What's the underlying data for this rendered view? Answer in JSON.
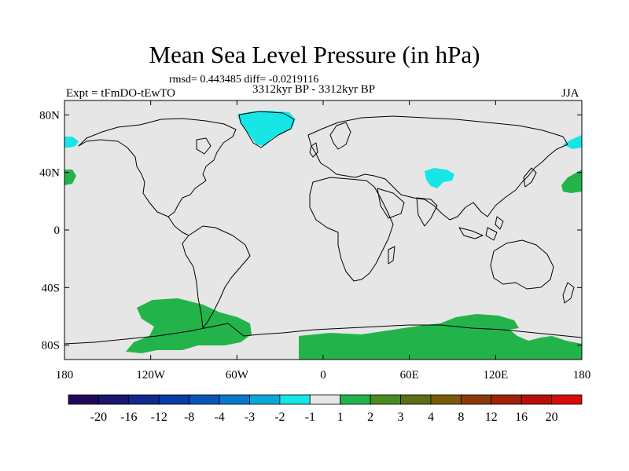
{
  "header": {
    "title": "Mean Sea Level Pressure (in hPa)",
    "rmsd": "rmsd= 0.443485 diff= -0.0219116",
    "experiment": "Expt = tFmDO-tEwTO",
    "period": "3312kyr BP - 3312kyr BP",
    "season": "JJA"
  },
  "map": {
    "lat_ticks": [
      "80N",
      "40N",
      "0",
      "40S",
      "80S"
    ],
    "lat_values": [
      80,
      40,
      0,
      -40,
      -80
    ],
    "lon_ticks": [
      "180",
      "120W",
      "60W",
      "0",
      "60E",
      "120E",
      "180"
    ],
    "lon_values": [
      -180,
      -120,
      -60,
      0,
      60,
      120,
      180
    ],
    "lat_range": [
      -90,
      90
    ],
    "lon_range": [
      -180,
      180
    ],
    "background_color": "#e6e6e6"
  },
  "colorbar": {
    "labels": [
      "-20",
      "-16",
      "-12",
      "-8",
      "-4",
      "-3",
      "-2",
      "-1",
      "1",
      "2",
      "3",
      "4",
      "8",
      "12",
      "16",
      "20"
    ],
    "colors": [
      "#21085a",
      "#1a1670",
      "#0f2a8c",
      "#0a3ca8",
      "#0a55b8",
      "#0a78c8",
      "#0aa8d8",
      "#16e6e6",
      "#e6e6e6",
      "#22b44a",
      "#4a8c22",
      "#5a6e14",
      "#7a5a0a",
      "#8c3a0a",
      "#a0220a",
      "#b80f0a",
      "#d80a0a"
    ]
  },
  "regions": [
    {
      "name": "greenland-anomaly",
      "fill": "#16e6e6"
    },
    {
      "name": "tibet-anomaly",
      "fill": "#16e6e6"
    },
    {
      "name": "bering-anomaly-east",
      "fill": "#16e6e6"
    },
    {
      "name": "bering-anomaly-west",
      "fill": "#16e6e6"
    },
    {
      "name": "north-pacific-east",
      "fill": "#22b44a"
    },
    {
      "name": "north-pacific-west",
      "fill": "#22b44a"
    },
    {
      "name": "southern-ocean-pacific",
      "fill": "#22b44a"
    },
    {
      "name": "antarctic-margin",
      "fill": "#22b44a"
    },
    {
      "name": "southern-ocean-indian",
      "fill": "#22b44a"
    }
  ]
}
